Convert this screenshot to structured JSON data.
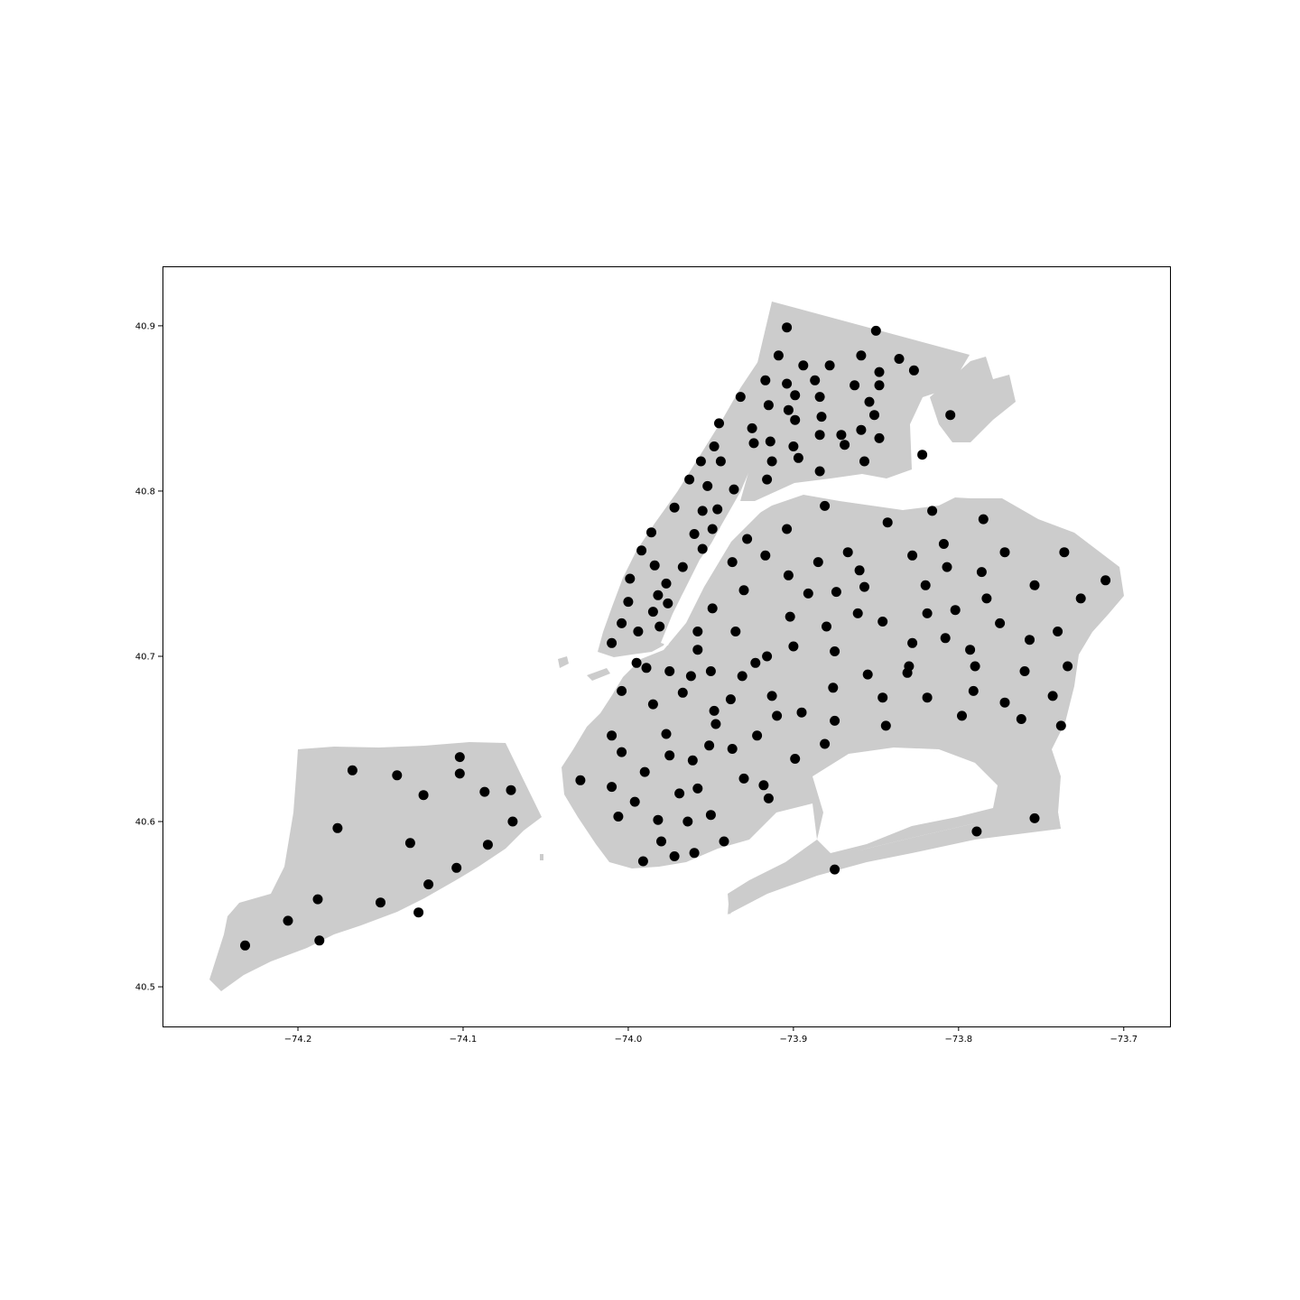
{
  "chart_data": {
    "type": "scatter",
    "title": "",
    "xlabel": "",
    "ylabel": "",
    "xlim": [
      -74.282,
      -73.672
    ],
    "ylim": [
      40.476,
      40.936
    ],
    "grid": false,
    "x_ticks": [
      {
        "value": -74.2,
        "label": "−74.2"
      },
      {
        "value": -74.1,
        "label": "−74.1"
      },
      {
        "value": -74.0,
        "label": "−74.0"
      },
      {
        "value": -73.9,
        "label": "−73.9"
      },
      {
        "value": -73.8,
        "label": "−73.8"
      },
      {
        "value": -73.7,
        "label": "−73.7"
      }
    ],
    "y_ticks": [
      {
        "value": 40.5,
        "label": "40.5"
      },
      {
        "value": 40.6,
        "label": "40.6"
      },
      {
        "value": 40.7,
        "label": "40.7"
      },
      {
        "value": 40.8,
        "label": "40.8"
      },
      {
        "value": 40.9,
        "label": "40.9"
      }
    ],
    "colors": {
      "land": "#cccccc",
      "points": "#000000",
      "background": "#ffffff"
    },
    "points": [
      [
        -73.904,
        40.899
      ],
      [
        -73.85,
        40.897
      ],
      [
        -73.909,
        40.882
      ],
      [
        -73.859,
        40.882
      ],
      [
        -73.836,
        40.88
      ],
      [
        -73.894,
        40.876
      ],
      [
        -73.878,
        40.876
      ],
      [
        -73.827,
        40.873
      ],
      [
        -73.848,
        40.872
      ],
      [
        -73.887,
        40.867
      ],
      [
        -73.917,
        40.867
      ],
      [
        -73.904,
        40.865
      ],
      [
        -73.863,
        40.864
      ],
      [
        -73.848,
        40.864
      ],
      [
        -73.932,
        40.857
      ],
      [
        -73.899,
        40.858
      ],
      [
        -73.884,
        40.857
      ],
      [
        -73.854,
        40.854
      ],
      [
        -73.915,
        40.852
      ],
      [
        -73.903,
        40.849
      ],
      [
        -73.851,
        40.846
      ],
      [
        -73.805,
        40.846
      ],
      [
        -73.883,
        40.845
      ],
      [
        -73.899,
        40.843
      ],
      [
        -73.945,
        40.841
      ],
      [
        -73.925,
        40.838
      ],
      [
        -73.859,
        40.837
      ],
      [
        -73.871,
        40.834
      ],
      [
        -73.884,
        40.834
      ],
      [
        -73.848,
        40.832
      ],
      [
        -73.914,
        40.83
      ],
      [
        -73.924,
        40.829
      ],
      [
        -73.869,
        40.828
      ],
      [
        -73.9,
        40.827
      ],
      [
        -73.948,
        40.827
      ],
      [
        -73.822,
        40.822
      ],
      [
        -73.897,
        40.82
      ],
      [
        -73.944,
        40.818
      ],
      [
        -73.956,
        40.818
      ],
      [
        -73.913,
        40.818
      ],
      [
        -73.857,
        40.818
      ],
      [
        -73.884,
        40.812
      ],
      [
        -73.963,
        40.807
      ],
      [
        -73.916,
        40.807
      ],
      [
        -73.952,
        40.803
      ],
      [
        -73.936,
        40.801
      ],
      [
        -73.972,
        40.79
      ],
      [
        -73.946,
        40.789
      ],
      [
        -73.881,
        40.791
      ],
      [
        -73.955,
        40.788
      ],
      [
        -73.816,
        40.788
      ],
      [
        -73.785,
        40.783
      ],
      [
        -73.843,
        40.781
      ],
      [
        -73.904,
        40.777
      ],
      [
        -73.949,
        40.777
      ],
      [
        -73.986,
        40.775
      ],
      [
        -73.96,
        40.774
      ],
      [
        -73.928,
        40.771
      ],
      [
        -73.809,
        40.768
      ],
      [
        -73.955,
        40.765
      ],
      [
        -73.992,
        40.764
      ],
      [
        -73.867,
        40.763
      ],
      [
        -73.772,
        40.763
      ],
      [
        -73.736,
        40.763
      ],
      [
        -73.917,
        40.761
      ],
      [
        -73.828,
        40.761
      ],
      [
        -73.937,
        40.757
      ],
      [
        -73.885,
        40.757
      ],
      [
        -73.984,
        40.755
      ],
      [
        -73.967,
        40.754
      ],
      [
        -73.807,
        40.754
      ],
      [
        -73.86,
        40.752
      ],
      [
        -73.786,
        40.751
      ],
      [
        -73.903,
        40.749
      ],
      [
        -73.999,
        40.747
      ],
      [
        -73.711,
        40.746
      ],
      [
        -73.977,
        40.744
      ],
      [
        -73.82,
        40.743
      ],
      [
        -73.754,
        40.743
      ],
      [
        -73.857,
        40.742
      ],
      [
        -73.93,
        40.74
      ],
      [
        -73.874,
        40.739
      ],
      [
        -73.891,
        40.738
      ],
      [
        -73.982,
        40.737
      ],
      [
        -73.783,
        40.735
      ],
      [
        -73.726,
        40.735
      ],
      [
        -74.0,
        40.733
      ],
      [
        -73.976,
        40.732
      ],
      [
        -73.949,
        40.729
      ],
      [
        -73.802,
        40.728
      ],
      [
        -73.985,
        40.727
      ],
      [
        -73.861,
        40.726
      ],
      [
        -73.819,
        40.726
      ],
      [
        -73.902,
        40.724
      ],
      [
        -74.004,
        40.72
      ],
      [
        -73.846,
        40.721
      ],
      [
        -73.775,
        40.72
      ],
      [
        -73.981,
        40.718
      ],
      [
        -73.88,
        40.718
      ],
      [
        -73.994,
        40.715
      ],
      [
        -73.958,
        40.715
      ],
      [
        -73.935,
        40.715
      ],
      [
        -73.74,
        40.715
      ],
      [
        -73.808,
        40.711
      ],
      [
        -73.757,
        40.71
      ],
      [
        -74.01,
        40.708
      ],
      [
        -73.828,
        40.708
      ],
      [
        -73.9,
        40.706
      ],
      [
        -73.958,
        40.704
      ],
      [
        -73.875,
        40.703
      ],
      [
        -73.793,
        40.704
      ],
      [
        -73.916,
        40.7
      ],
      [
        -73.923,
        40.696
      ],
      [
        -73.995,
        40.696
      ],
      [
        -73.989,
        40.693
      ],
      [
        -73.734,
        40.694
      ],
      [
        -73.83,
        40.694
      ],
      [
        -73.79,
        40.694
      ],
      [
        -73.95,
        40.691
      ],
      [
        -73.975,
        40.691
      ],
      [
        -73.831,
        40.69
      ],
      [
        -73.76,
        40.691
      ],
      [
        -73.931,
        40.688
      ],
      [
        -73.962,
        40.688
      ],
      [
        -73.855,
        40.689
      ],
      [
        -73.876,
        40.681
      ],
      [
        -74.004,
        40.679
      ],
      [
        -73.791,
        40.679
      ],
      [
        -73.967,
        40.678
      ],
      [
        -73.913,
        40.676
      ],
      [
        -73.743,
        40.676
      ],
      [
        -73.846,
        40.675
      ],
      [
        -73.819,
        40.675
      ],
      [
        -73.938,
        40.674
      ],
      [
        -73.772,
        40.672
      ],
      [
        -73.985,
        40.671
      ],
      [
        -73.948,
        40.667
      ],
      [
        -73.895,
        40.666
      ],
      [
        -73.91,
        40.664
      ],
      [
        -73.798,
        40.664
      ],
      [
        -73.762,
        40.662
      ],
      [
        -73.875,
        40.661
      ],
      [
        -73.947,
        40.659
      ],
      [
        -73.844,
        40.658
      ],
      [
        -73.738,
        40.658
      ],
      [
        -73.977,
        40.653
      ],
      [
        -74.01,
        40.652
      ],
      [
        -73.922,
        40.652
      ],
      [
        -73.881,
        40.647
      ],
      [
        -73.951,
        40.646
      ],
      [
        -73.937,
        40.644
      ],
      [
        -74.004,
        40.642
      ],
      [
        -73.975,
        40.64
      ],
      [
        -74.102,
        40.639
      ],
      [
        -73.899,
        40.638
      ],
      [
        -73.961,
        40.637
      ],
      [
        -74.167,
        40.631
      ],
      [
        -73.99,
        40.63
      ],
      [
        -74.102,
        40.629
      ],
      [
        -74.14,
        40.628
      ],
      [
        -73.93,
        40.626
      ],
      [
        -74.029,
        40.625
      ],
      [
        -73.918,
        40.622
      ],
      [
        -74.01,
        40.621
      ],
      [
        -73.958,
        40.62
      ],
      [
        -74.071,
        40.619
      ],
      [
        -74.087,
        40.618
      ],
      [
        -74.124,
        40.616
      ],
      [
        -73.969,
        40.617
      ],
      [
        -73.915,
        40.614
      ],
      [
        -73.996,
        40.612
      ],
      [
        -73.754,
        40.602
      ],
      [
        -74.006,
        40.603
      ],
      [
        -73.95,
        40.604
      ],
      [
        -73.982,
        40.601
      ],
      [
        -73.964,
        40.6
      ],
      [
        -74.07,
        40.6
      ],
      [
        -74.176,
        40.596
      ],
      [
        -73.789,
        40.594
      ],
      [
        -73.98,
        40.588
      ],
      [
        -74.132,
        40.587
      ],
      [
        -73.942,
        40.588
      ],
      [
        -74.085,
        40.586
      ],
      [
        -73.96,
        40.581
      ],
      [
        -73.972,
        40.579
      ],
      [
        -73.991,
        40.576
      ],
      [
        -74.104,
        40.572
      ],
      [
        -73.875,
        40.571
      ],
      [
        -74.121,
        40.562
      ],
      [
        -74.188,
        40.553
      ],
      [
        -74.15,
        40.551
      ],
      [
        -74.127,
        40.545
      ],
      [
        -74.206,
        40.54
      ],
      [
        -74.187,
        40.528
      ],
      [
        -74.232,
        40.525
      ]
    ]
  }
}
